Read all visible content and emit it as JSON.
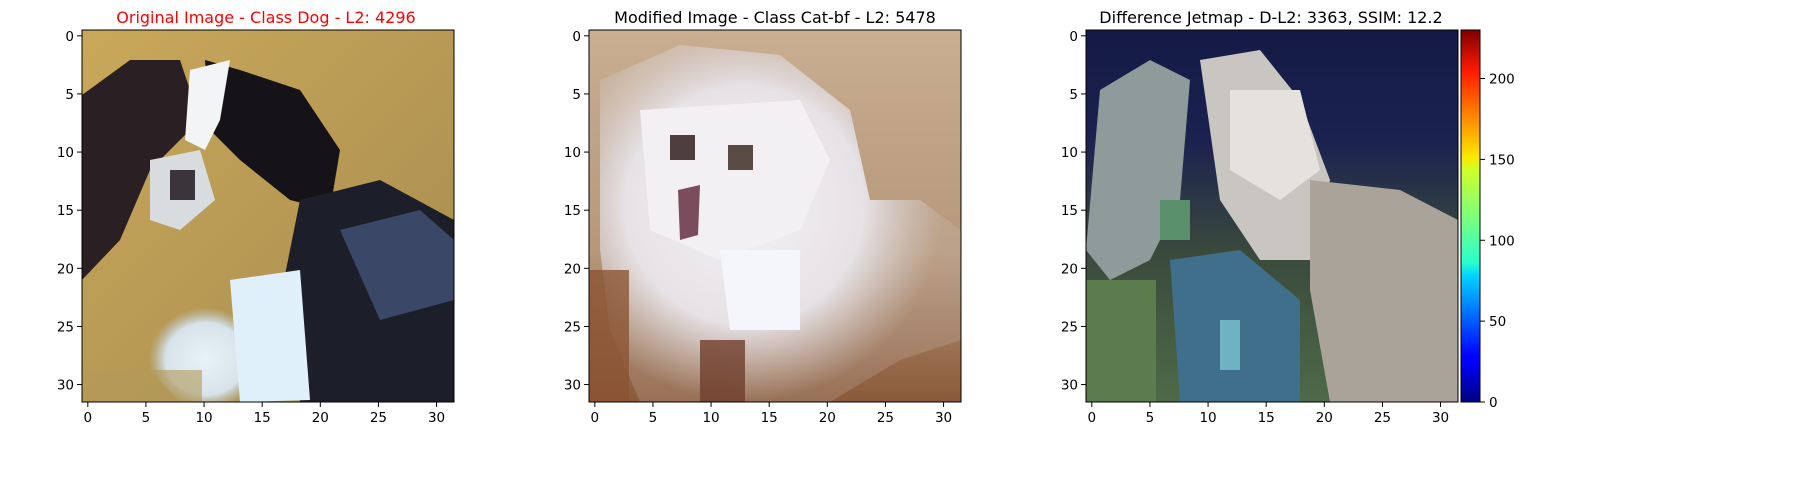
{
  "figure": {
    "panels": [
      {
        "id": "original",
        "title": "Original Image - Class Dog - L2: 4296",
        "title_color": "#ff0000",
        "description": "Pixelated 32x32 photo of a black-and-white dog on a tan background",
        "xticks": [
          "0",
          "5",
          "10",
          "15",
          "20",
          "25",
          "30"
        ],
        "yticks": [
          "0",
          "5",
          "10",
          "15",
          "20",
          "25",
          "30"
        ]
      },
      {
        "id": "modified",
        "title": "Modified Image - Class Cat-bf - L2: 5478",
        "title_color": "#000000",
        "description": "Pixelated 32x32 photo of a fluffy white cat on a beige/brown background",
        "xticks": [
          "0",
          "5",
          "10",
          "15",
          "20",
          "25",
          "30"
        ],
        "yticks": [
          "0",
          "5",
          "10",
          "15",
          "20",
          "25",
          "30"
        ]
      },
      {
        "id": "difference",
        "title": "Difference Jetmap - D-L2: 3363, SSIM: 12.2",
        "title_color": "#000000",
        "description": "Pixelated difference image blending dog and cat with dark blue top region",
        "xticks": [
          "0",
          "5",
          "10",
          "15",
          "20",
          "25",
          "30"
        ],
        "yticks": [
          "0",
          "5",
          "10",
          "15",
          "20",
          "25",
          "30"
        ]
      }
    ],
    "colorbar": {
      "colormap": "jet",
      "min": 0,
      "max": 230,
      "ticks": [
        "0",
        "50",
        "100",
        "150",
        "200"
      ]
    }
  }
}
